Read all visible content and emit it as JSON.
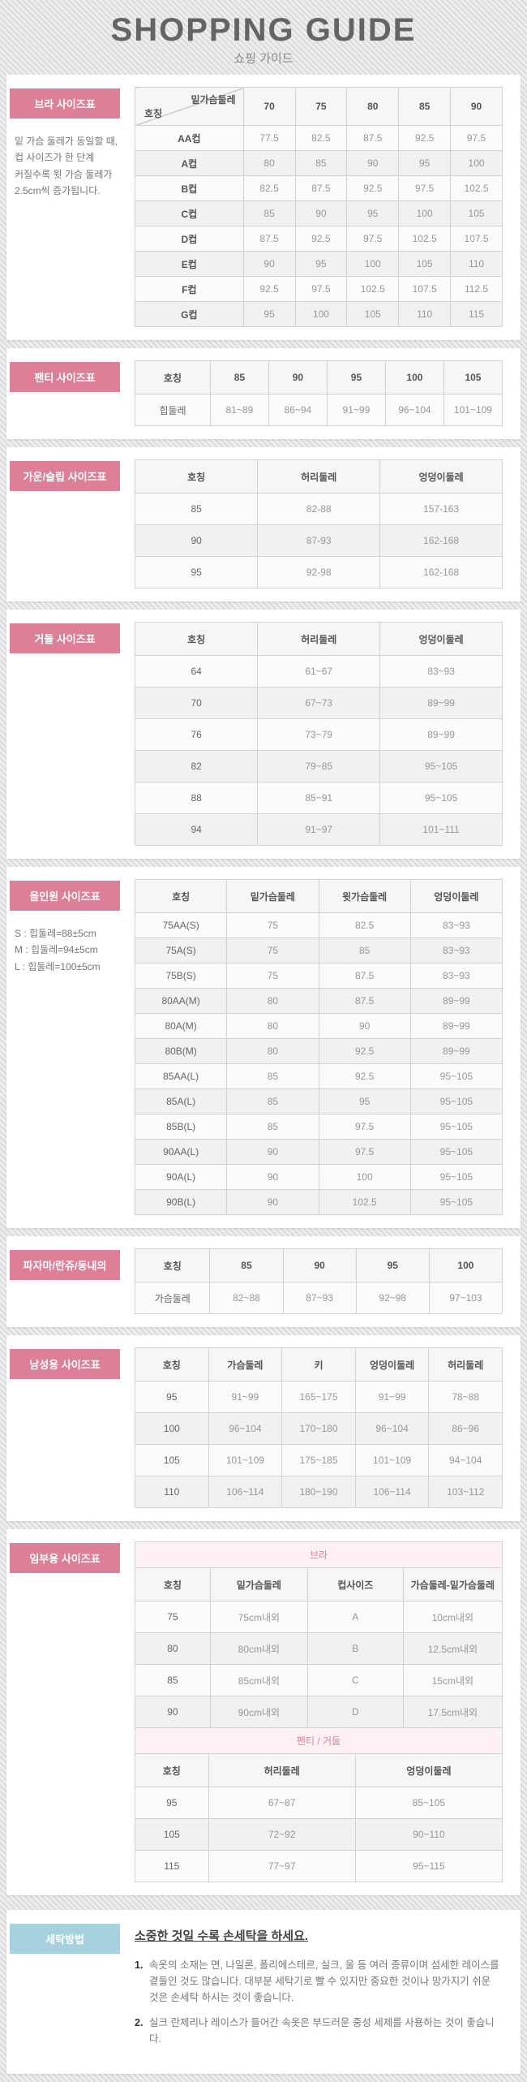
{
  "colors": {
    "accent_pink": "#dc7f97",
    "accent_blue": "#a8d1df",
    "caption_pink": "#dd8099"
  },
  "header": {
    "title": "SHOPPING GUIDE",
    "subtitle": "쇼핑 가이드"
  },
  "sections": [
    {
      "id": "bra",
      "label": "브라 사이즈표",
      "note_lines": [
        "밑 가슴 둘레가 동일할 때,",
        "컵 사이즈가 한 단계",
        "커질수록 윗 가슴 둘레가",
        "2.5cm씩 증가됩니다."
      ],
      "tables": [
        {
          "corner": {
            "top": "밑가슴둘레",
            "bottom": "호칭"
          },
          "header": [
            "70",
            "75",
            "80",
            "85",
            "90"
          ],
          "rows": [
            [
              "AA컵",
              "77.5",
              "82.5",
              "87.5",
              "92.5",
              "97.5"
            ],
            [
              "A컵",
              "80",
              "85",
              "90",
              "95",
              "100"
            ],
            [
              "B컵",
              "82.5",
              "87.5",
              "92.5",
              "97.5",
              "102.5"
            ],
            [
              "C컵",
              "85",
              "90",
              "95",
              "100",
              "105"
            ],
            [
              "D컵",
              "87.5",
              "92.5",
              "97.5",
              "102.5",
              "107.5"
            ],
            [
              "E컵",
              "90",
              "95",
              "100",
              "105",
              "110"
            ],
            [
              "F컵",
              "92.5",
              "97.5",
              "102.5",
              "107.5",
              "112.5"
            ],
            [
              "G컵",
              "95",
              "100",
              "105",
              "110",
              "115"
            ]
          ]
        }
      ]
    },
    {
      "id": "panty",
      "label": "팬티 사이즈표",
      "tables": [
        {
          "header": [
            "호칭",
            "85",
            "90",
            "95",
            "100",
            "105"
          ],
          "rows": [
            [
              "힙둘레",
              "81~89",
              "86~94",
              "91~99",
              "96~104",
              "101~109"
            ]
          ]
        }
      ]
    },
    {
      "id": "gown",
      "label": "가운/슬립 사이즈표",
      "tables": [
        {
          "header": [
            "호칭",
            "허리둘레",
            "엉덩이둘레"
          ],
          "rows": [
            [
              "85",
              "82-88",
              "157-163"
            ],
            [
              "90",
              "87-93",
              "162-168"
            ],
            [
              "95",
              "92-98",
              "162-168"
            ]
          ]
        }
      ]
    },
    {
      "id": "girdle",
      "label": "거들 사이즈표",
      "tables": [
        {
          "header": [
            "호칭",
            "허리둘레",
            "엉덩이둘레"
          ],
          "rows": [
            [
              "64",
              "61~67",
              "83~93"
            ],
            [
              "70",
              "67~73",
              "89~99"
            ],
            [
              "76",
              "73~79",
              "89~99"
            ],
            [
              "82",
              "79~85",
              "95~105"
            ],
            [
              "88",
              "85~91",
              "95~105"
            ],
            [
              "94",
              "91~97",
              "101~111"
            ]
          ]
        }
      ]
    },
    {
      "id": "allinone",
      "label": "올인원 사이즈표",
      "note_lines": [
        "S : 힙둘레=88±5cm",
        "M : 힙둘레=94±5cm",
        "L : 힙둘레=100±5cm"
      ],
      "tables": [
        {
          "header": [
            "호칭",
            "밑가슴둘레",
            "윗가슴둘레",
            "엉덩이둘레"
          ],
          "rows": [
            [
              "75AA(S)",
              "75",
              "82.5",
              "83~93"
            ],
            [
              "75A(S)",
              "75",
              "85",
              "83~93"
            ],
            [
              "75B(S)",
              "75",
              "87.5",
              "83~93"
            ],
            [
              "80AA(M)",
              "80",
              "87.5",
              "89~99"
            ],
            [
              "80A(M)",
              "80",
              "90",
              "89~99"
            ],
            [
              "80B(M)",
              "80",
              "92.5",
              "89~99"
            ],
            [
              "85AA(L)",
              "85",
              "92.5",
              "95~105"
            ],
            [
              "85A(L)",
              "85",
              "95",
              "95~105"
            ],
            [
              "85B(L)",
              "85",
              "97.5",
              "95~105"
            ],
            [
              "90AA(L)",
              "90",
              "97.5",
              "95~105"
            ],
            [
              "90A(L)",
              "90",
              "100",
              "95~105"
            ],
            [
              "90B(L)",
              "90",
              "102.5",
              "95~105"
            ]
          ]
        }
      ]
    },
    {
      "id": "pajama",
      "label": "파자마/란쥬/동내의",
      "tables": [
        {
          "header": [
            "호칭",
            "85",
            "90",
            "95",
            "100"
          ],
          "rows": [
            [
              "가슴둘레",
              "82~88",
              "87~93",
              "92~98",
              "97~103"
            ]
          ]
        }
      ]
    },
    {
      "id": "mens",
      "label": "남성용 사이즈표",
      "tables": [
        {
          "header": [
            "호칭",
            "가슴둘레",
            "키",
            "엉덩이둘레",
            "허리둘레"
          ],
          "rows": [
            [
              "95",
              "91~99",
              "165~175",
              "91~99",
              "78~88"
            ],
            [
              "100",
              "96~104",
              "170~180",
              "96~104",
              "86~96"
            ],
            [
              "105",
              "101~109",
              "175~185",
              "101~109",
              "94~104"
            ],
            [
              "110",
              "106~114",
              "180~190",
              "106~114",
              "103~112"
            ]
          ]
        }
      ]
    },
    {
      "id": "maternity",
      "label": "임부용 사이즈표",
      "tables": [
        {
          "caption": "브라",
          "header": [
            "호칭",
            "밑가슴둘레",
            "컵사이즈",
            "가슴둘레-밑가슴둘레"
          ],
          "rows": [
            [
              "75",
              "75cm내외",
              "A",
              "10cm내외"
            ],
            [
              "80",
              "80cm내외",
              "B",
              "12.5cm내외"
            ],
            [
              "85",
              "85cm내외",
              "C",
              "15cm내외"
            ],
            [
              "90",
              "90cm내외",
              "D",
              "17.5cm내외"
            ]
          ]
        },
        {
          "caption": "팬티 / 거들",
          "header": [
            "호칭",
            "허리둘레",
            "엉덩이둘레"
          ],
          "rows": [
            [
              "95",
              "67~87",
              "85~105"
            ],
            [
              "105",
              "72~92",
              "90~110"
            ],
            [
              "115",
              "77~97",
              "95~115"
            ]
          ]
        }
      ]
    },
    {
      "id": "washing",
      "label": "세탁방법",
      "title": "소중한 것일 수록 손세탁을 하세요.",
      "items": [
        {
          "num": "1.",
          "text": "속옷의 소재는 면, 나일론, 폴리에스테르, 실크, 울 등 여러 종류이며 섬세한 레이스를 곁들인 것도 많습니다. 대부분 세탁기로 빨 수 있지만 중요한 것이나 망가지기 쉬운 것은 손세탁 하시는 것이 좋습니다."
        },
        {
          "num": "2.",
          "text": "실크 란제리나 레이스가 들어간 속옷은 부드러운 중성 세제를 사용하는 것이 좋습니다."
        }
      ]
    }
  ]
}
